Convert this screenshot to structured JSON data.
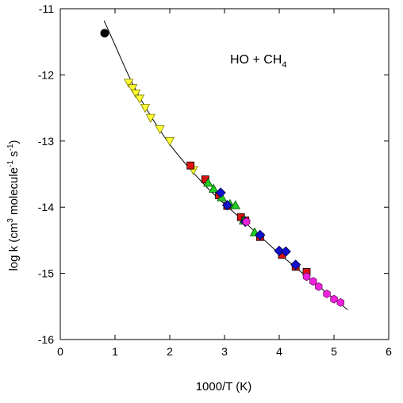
{
  "chart_data": {
    "type": "scatter",
    "xlabel": "1000/T (K)",
    "ylabel": {
      "main": "log k (cm",
      "sup1": "3",
      "mid": " molecule",
      "sup2": "-1",
      "mid2": " s",
      "sup3": "-1",
      "end": ")"
    },
    "annotation": {
      "main": "HO + CH",
      "sub": "4"
    },
    "xlim": [
      0,
      6
    ],
    "ylim": [
      -16,
      -11
    ],
    "xticks": [
      0,
      1,
      2,
      3,
      4,
      5,
      6
    ],
    "yticks": [
      -16,
      -15,
      -14,
      -13,
      -12,
      -11
    ],
    "xtick_labels": [
      "0",
      "1",
      "2",
      "3",
      "4",
      "5",
      "6"
    ],
    "ytick_labels": [
      "-16",
      "-15",
      "-14",
      "-13",
      "-12",
      "-11"
    ],
    "grid": false,
    "legend": "none",
    "fit_curve": {
      "color": "#000000",
      "points": [
        [
          0.8,
          -11.18
        ],
        [
          1.0,
          -11.55
        ],
        [
          1.3,
          -12.1
        ],
        [
          1.6,
          -12.55
        ],
        [
          2.0,
          -13.05
        ],
        [
          2.4,
          -13.45
        ],
        [
          2.8,
          -13.8
        ],
        [
          3.2,
          -14.1
        ],
        [
          3.6,
          -14.4
        ],
        [
          4.0,
          -14.7
        ],
        [
          4.4,
          -14.98
        ],
        [
          4.8,
          -15.25
        ],
        [
          5.25,
          -15.55
        ]
      ]
    },
    "series": [
      {
        "marker": "circle",
        "color": "#000000",
        "stroke": "#000000",
        "points": [
          [
            0.81,
            -11.37
          ]
        ]
      },
      {
        "marker": "triangle-down",
        "color": "#ffff33",
        "stroke": "#7a7a00",
        "points": [
          [
            1.25,
            -12.12
          ],
          [
            1.32,
            -12.2
          ],
          [
            1.38,
            -12.28
          ],
          [
            1.45,
            -12.36
          ],
          [
            1.55,
            -12.5
          ],
          [
            1.65,
            -12.65
          ],
          [
            1.82,
            -12.82
          ],
          [
            2.0,
            -13.0
          ],
          [
            2.43,
            -13.44
          ]
        ]
      },
      {
        "marker": "square",
        "color": "#dd1111",
        "stroke": "#000000",
        "points": [
          [
            2.38,
            -13.37
          ],
          [
            2.65,
            -13.58
          ],
          [
            2.9,
            -13.82
          ],
          [
            3.05,
            -13.98
          ],
          [
            3.3,
            -14.15
          ],
          [
            3.38,
            -14.2
          ],
          [
            3.65,
            -14.45
          ],
          [
            4.05,
            -14.72
          ],
          [
            4.3,
            -14.9
          ],
          [
            4.5,
            -14.98
          ]
        ]
      },
      {
        "marker": "triangle-up",
        "color": "#22cc22",
        "stroke": "#005500",
        "points": [
          [
            2.7,
            -13.63
          ],
          [
            2.8,
            -13.72
          ],
          [
            2.95,
            -13.85
          ],
          [
            3.1,
            -13.95
          ],
          [
            3.2,
            -13.97
          ],
          [
            3.35,
            -14.2
          ],
          [
            3.55,
            -14.38
          ]
        ]
      },
      {
        "marker": "diamond",
        "color": "#1111cc",
        "stroke": "#000044",
        "points": [
          [
            2.93,
            -13.78
          ],
          [
            3.05,
            -13.97
          ],
          [
            3.38,
            -14.22
          ],
          [
            3.65,
            -14.42
          ],
          [
            4.0,
            -14.66
          ],
          [
            4.12,
            -14.67
          ],
          [
            4.3,
            -14.87
          ]
        ]
      },
      {
        "marker": "hexagon",
        "color": "#ee22dd",
        "stroke": "#771166",
        "points": [
          [
            3.4,
            -14.22
          ],
          [
            4.5,
            -15.05
          ],
          [
            4.62,
            -15.12
          ],
          [
            4.72,
            -15.2
          ],
          [
            4.87,
            -15.31
          ],
          [
            5.0,
            -15.39
          ],
          [
            5.12,
            -15.44
          ]
        ]
      }
    ]
  }
}
